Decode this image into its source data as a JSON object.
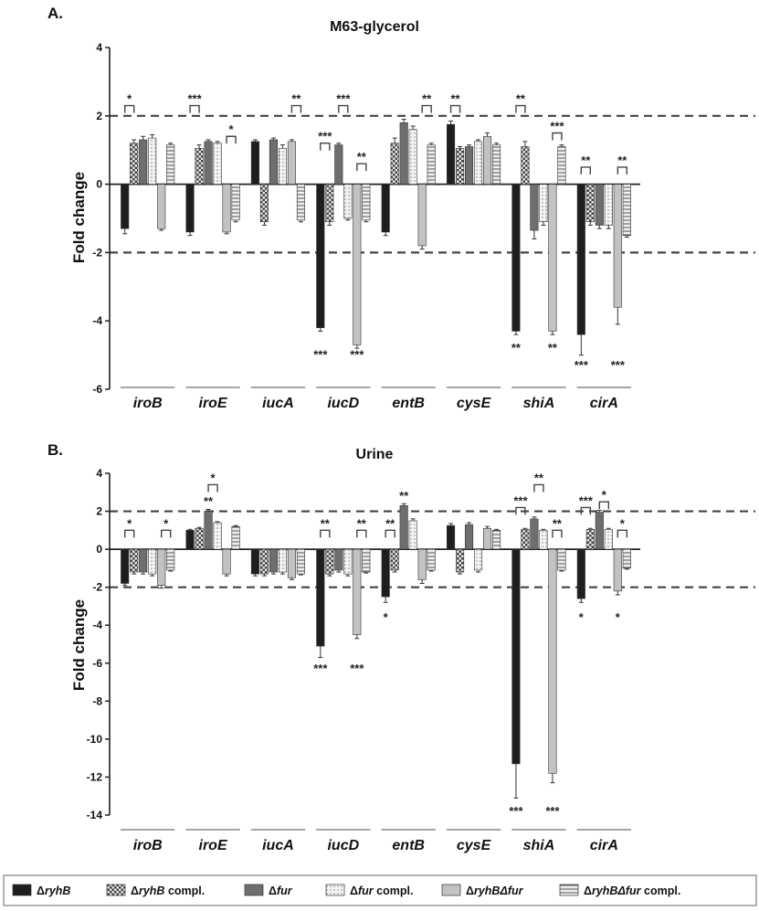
{
  "chart_data": [
    {
      "type": "bar",
      "panel": "A.",
      "title": "M63-glycerol",
      "ylabel": "Fold change",
      "ylim": [
        -6,
        4
      ],
      "yticks": [
        4,
        2,
        0,
        -2,
        -4,
        -6
      ],
      "threshold_lines": [
        2,
        -2
      ],
      "categories": [
        "iroB",
        "iroE",
        "iucA",
        "iucD",
        "entB",
        "cysE",
        "shiA",
        "cirA"
      ],
      "series": [
        {
          "name": "ΔryhB",
          "values": [
            -1.3,
            -1.4,
            1.25,
            -4.2,
            -1.4,
            1.75,
            -4.3,
            -4.4
          ],
          "errors": [
            0.15,
            0.1,
            0.05,
            0.1,
            0.1,
            0.1,
            0.1,
            0.6
          ]
        },
        {
          "name": "ΔryhB compl.",
          "values": [
            1.2,
            1.05,
            -1.1,
            -1.1,
            1.2,
            1.05,
            1.1,
            -1.1
          ],
          "errors": [
            0.1,
            0.1,
            0.1,
            0.1,
            0.15,
            0.05,
            0.15,
            0.1
          ]
        },
        {
          "name": "Δfur",
          "values": [
            1.3,
            1.25,
            1.3,
            1.15,
            1.8,
            1.1,
            -1.35,
            -1.2
          ],
          "errors": [
            0.1,
            0.05,
            0.05,
            0.05,
            0.1,
            0.05,
            0.25,
            0.1
          ]
        },
        {
          "name": "Δfur compl.",
          "values": [
            1.35,
            1.2,
            1.05,
            -1.0,
            1.6,
            1.25,
            -1.1,
            -1.2
          ],
          "errors": [
            0.1,
            0.05,
            0.1,
            0.05,
            0.1,
            0.05,
            0.1,
            0.1
          ]
        },
        {
          "name": "ΔryhBΔfur",
          "values": [
            -1.3,
            -1.4,
            1.25,
            -4.7,
            -1.8,
            1.4,
            -4.3,
            -3.6
          ],
          "errors": [
            0.05,
            0.05,
            0.05,
            0.1,
            0.1,
            0.1,
            0.1,
            0.5
          ]
        },
        {
          "name": "ΔryhBΔfur compl.",
          "values": [
            1.15,
            -1.05,
            -1.05,
            -1.05,
            1.15,
            1.15,
            1.1,
            -1.5
          ],
          "errors": [
            0.05,
            0.05,
            0.05,
            0.05,
            0.05,
            0.05,
            0.05,
            0.05
          ]
        }
      ],
      "annotations": [
        {
          "text": "*",
          "category": 0,
          "type": "bracket",
          "pair": [
            0,
            1
          ],
          "y": 2.3
        },
        {
          "text": "***",
          "category": 1,
          "type": "bracket",
          "pair": [
            0,
            1
          ],
          "y": 2.3
        },
        {
          "text": "*",
          "category": 1,
          "type": "bracket",
          "pair": [
            4,
            5
          ],
          "y": 1.4
        },
        {
          "text": "**",
          "category": 2,
          "type": "bracket",
          "pair": [
            4,
            5
          ],
          "y": 2.3
        },
        {
          "text": "***",
          "category": 3,
          "type": "bracket",
          "pair": [
            0,
            1
          ],
          "y": 1.2
        },
        {
          "text": "***",
          "category": 3,
          "type": "bracket",
          "pair": [
            2,
            3
          ],
          "y": 2.3
        },
        {
          "text": "**",
          "category": 3,
          "type": "bracket",
          "pair": [
            4,
            5
          ],
          "y": 0.6
        },
        {
          "text": "**",
          "category": 4,
          "type": "bracket",
          "pair": [
            4,
            5
          ],
          "y": 2.3
        },
        {
          "text": "**",
          "category": 5,
          "type": "bracket",
          "pair": [
            0,
            1
          ],
          "y": 2.3
        },
        {
          "text": "**",
          "category": 6,
          "type": "bracket",
          "pair": [
            0,
            1
          ],
          "y": 2.3
        },
        {
          "text": "***",
          "category": 6,
          "type": "bracket",
          "pair": [
            4,
            5
          ],
          "y": 1.5
        },
        {
          "text": "**",
          "category": 7,
          "type": "bracket",
          "pair": [
            0,
            1
          ],
          "y": 0.5
        },
        {
          "text": "**",
          "category": 7,
          "type": "bracket",
          "pair": [
            4,
            5
          ],
          "y": 0.5
        },
        {
          "text": "***",
          "category": 3,
          "type": "below",
          "series": 0,
          "y": -5.0
        },
        {
          "text": "***",
          "category": 3,
          "type": "below",
          "series": 4,
          "y": -5.0
        },
        {
          "text": "**",
          "category": 6,
          "type": "below",
          "series": 0,
          "y": -4.8
        },
        {
          "text": "**",
          "category": 6,
          "type": "below",
          "series": 4,
          "y": -4.8
        },
        {
          "text": "***",
          "category": 7,
          "type": "below",
          "series": 0,
          "y": -5.3
        },
        {
          "text": "***",
          "category": 7,
          "type": "below",
          "series": 4,
          "y": -5.3
        }
      ]
    },
    {
      "type": "bar",
      "panel": "B.",
      "title": "Urine",
      "ylabel": "Fold change",
      "ylim": [
        -14,
        4
      ],
      "yticks": [
        4,
        2,
        0,
        -2,
        -4,
        -6,
        -8,
        -10,
        -12,
        -14
      ],
      "threshold_lines": [
        2,
        -2
      ],
      "categories": [
        "iroB",
        "iroE",
        "iucA",
        "iucD",
        "entB",
        "cysE",
        "shiA",
        "cirA"
      ],
      "series": [
        {
          "name": "ΔryhB",
          "values": [
            -1.8,
            1.0,
            -1.3,
            -5.1,
            -2.5,
            1.25,
            -11.3,
            -2.6
          ],
          "errors": [
            0.1,
            0.05,
            0.1,
            0.6,
            0.3,
            0.1,
            1.8,
            0.2
          ]
        },
        {
          "name": "ΔryhB compl.",
          "values": [
            -1.2,
            1.1,
            -1.3,
            -1.3,
            -1.1,
            -1.2,
            1.05,
            1.05
          ],
          "errors": [
            0.1,
            0.05,
            0.1,
            0.1,
            0.1,
            0.1,
            0.05,
            0.05
          ]
        },
        {
          "name": "Δfur",
          "values": [
            -1.2,
            2.0,
            -1.2,
            -1.1,
            2.3,
            1.3,
            1.6,
            1.95
          ],
          "errors": [
            0.1,
            0.1,
            0.1,
            0.1,
            0.1,
            0.1,
            0.1,
            0.1
          ]
        },
        {
          "name": "Δfur compl.",
          "values": [
            -1.3,
            1.4,
            -1.2,
            -1.3,
            1.5,
            -1.1,
            1.0,
            1.05
          ],
          "errors": [
            0.1,
            0.05,
            0.1,
            0.1,
            0.1,
            0.1,
            0.05,
            0.05
          ]
        },
        {
          "name": "ΔryhBΔfur",
          "values": [
            -1.9,
            -1.3,
            -1.5,
            -4.5,
            -1.6,
            1.1,
            -11.8,
            -2.2
          ],
          "errors": [
            0.15,
            0.1,
            0.1,
            0.2,
            0.2,
            0.1,
            0.5,
            0.2
          ]
        },
        {
          "name": "ΔryhBΔfur compl.",
          "values": [
            -1.1,
            1.2,
            -1.3,
            -1.2,
            -1.1,
            1.0,
            -1.1,
            -1.0
          ],
          "errors": [
            0.05,
            0.05,
            0.05,
            0.05,
            0.05,
            0.05,
            0.05,
            0.05
          ]
        }
      ],
      "annotations": [
        {
          "text": "*",
          "category": 0,
          "type": "bracket",
          "pair": [
            0,
            1
          ],
          "y": 1.0
        },
        {
          "text": "*",
          "category": 0,
          "type": "bracket",
          "pair": [
            4,
            5
          ],
          "y": 1.0
        },
        {
          "text": "*",
          "category": 1,
          "type": "bracket",
          "pair": [
            2,
            3
          ],
          "y": 3.4
        },
        {
          "text": "**",
          "category": 1,
          "type": "above",
          "series": 2,
          "y": 2.5
        },
        {
          "text": "**",
          "category": 3,
          "type": "bracket",
          "pair": [
            0,
            1
          ],
          "y": 1.0
        },
        {
          "text": "**",
          "category": 3,
          "type": "bracket",
          "pair": [
            4,
            5
          ],
          "y": 1.0
        },
        {
          "text": "**",
          "category": 4,
          "type": "bracket",
          "pair": [
            0,
            1
          ],
          "y": 1.0
        },
        {
          "text": "**",
          "category": 4,
          "type": "above",
          "series": 2,
          "y": 2.8
        },
        {
          "text": "***",
          "category": 6,
          "type": "bracket",
          "pair": [
            0,
            1
          ],
          "y": 2.2
        },
        {
          "text": "**",
          "category": 6,
          "type": "bracket",
          "pair": [
            2,
            3
          ],
          "y": 3.4
        },
        {
          "text": "**",
          "category": 6,
          "type": "bracket",
          "pair": [
            4,
            5
          ],
          "y": 1.0
        },
        {
          "text": "***",
          "category": 7,
          "type": "bracket",
          "pair": [
            0,
            1
          ],
          "y": 2.2
        },
        {
          "text": "*",
          "category": 7,
          "type": "bracket",
          "pair": [
            2,
            3
          ],
          "y": 2.5
        },
        {
          "text": "*",
          "category": 7,
          "type": "bracket",
          "pair": [
            4,
            5
          ],
          "y": 1.0
        },
        {
          "text": "***",
          "category": 3,
          "type": "below",
          "series": 0,
          "y": -6.3
        },
        {
          "text": "***",
          "category": 3,
          "type": "below",
          "series": 4,
          "y": -6.3
        },
        {
          "text": "*",
          "category": 4,
          "type": "below",
          "series": 0,
          "y": -3.6
        },
        {
          "text": "***",
          "category": 6,
          "type": "below",
          "series": 0,
          "y": -13.8
        },
        {
          "text": "***",
          "category": 6,
          "type": "below",
          "series": 4,
          "y": -13.8
        },
        {
          "text": "*",
          "category": 7,
          "type": "below",
          "series": 0,
          "y": -3.6
        },
        {
          "text": "*",
          "category": 7,
          "type": "below",
          "series": 4,
          "y": -3.6
        }
      ]
    }
  ],
  "legend": {
    "placement": "bottom",
    "items": [
      {
        "prefix": "Δ",
        "gene": "ryhB",
        "suffix": ""
      },
      {
        "prefix": "Δ",
        "gene": "ryhB",
        "suffix": " compl."
      },
      {
        "prefix": "Δ",
        "gene": "fur",
        "suffix": ""
      },
      {
        "prefix": "Δ",
        "gene": "fur",
        "suffix": " compl."
      },
      {
        "prefix": "Δ",
        "gene": "ryhBΔfur",
        "suffix": ""
      },
      {
        "prefix": "Δ",
        "gene": "ryhBΔfur",
        "suffix": " compl."
      }
    ]
  }
}
